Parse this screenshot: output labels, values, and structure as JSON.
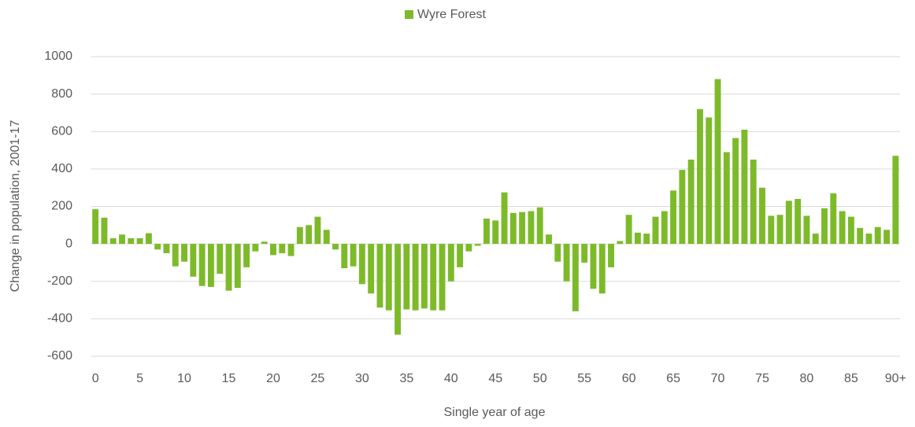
{
  "chart_data": {
    "type": "bar",
    "legend": "Wyre Forest",
    "xlabel": "Single year of age",
    "ylabel": "Change in population, 2001-17",
    "color": "#7dba2a",
    "grid": true,
    "ylim": [
      -600,
      1000
    ],
    "yticks": [
      -600,
      -400,
      -200,
      0,
      200,
      400,
      600,
      800,
      1000
    ],
    "categories": [
      "0",
      null,
      null,
      null,
      null,
      "5",
      null,
      null,
      null,
      null,
      "10",
      null,
      null,
      null,
      null,
      "15",
      null,
      null,
      null,
      null,
      "20",
      null,
      null,
      null,
      null,
      "25",
      null,
      null,
      null,
      null,
      "30",
      null,
      null,
      null,
      null,
      "35",
      null,
      null,
      null,
      null,
      "40",
      null,
      null,
      null,
      null,
      "45",
      null,
      null,
      null,
      null,
      "50",
      null,
      null,
      null,
      null,
      "55",
      null,
      null,
      null,
      null,
      "60",
      null,
      null,
      null,
      null,
      "65",
      null,
      null,
      null,
      null,
      "70",
      null,
      null,
      null,
      null,
      "75",
      null,
      null,
      null,
      null,
      "80",
      null,
      null,
      null,
      null,
      "85",
      null,
      null,
      null,
      null,
      "90+"
    ],
    "values": [
      185,
      140,
      30,
      50,
      30,
      30,
      57,
      -30,
      -50,
      -120,
      -95,
      -175,
      -225,
      -230,
      -160,
      -250,
      -235,
      -125,
      -40,
      12,
      -60,
      -50,
      -65,
      90,
      100,
      145,
      75,
      -30,
      -130,
      -120,
      -215,
      -265,
      -340,
      -355,
      -485,
      -350,
      -355,
      -345,
      -355,
      -355,
      -200,
      -125,
      -40,
      -10,
      135,
      125,
      275,
      165,
      170,
      175,
      195,
      50,
      -95,
      -200,
      -360,
      -100,
      -240,
      -265,
      -125,
      15,
      155,
      60,
      55,
      145,
      175,
      285,
      395,
      450,
      720,
      675,
      880,
      490,
      565,
      610,
      450,
      300,
      150,
      155,
      230,
      240,
      150,
      55,
      190,
      270,
      175,
      145,
      85,
      55,
      90,
      75,
      470
    ]
  }
}
